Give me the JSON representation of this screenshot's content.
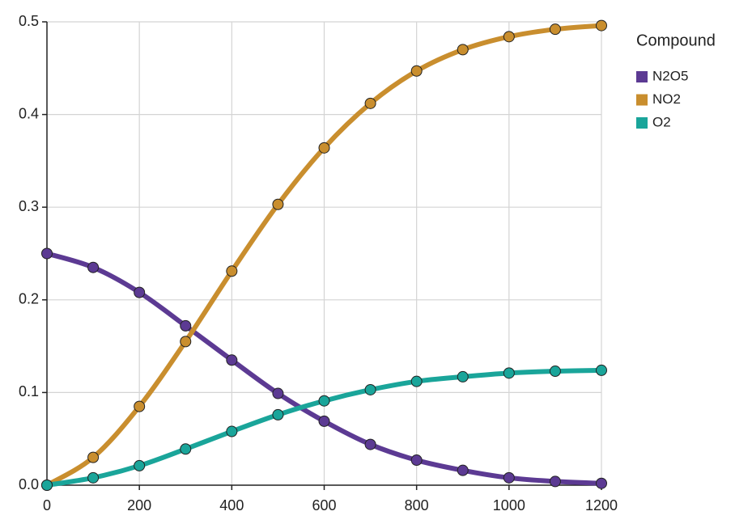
{
  "chart_data": {
    "type": "line",
    "x": [
      0,
      100,
      200,
      300,
      400,
      500,
      600,
      700,
      800,
      900,
      1000,
      1100,
      1200
    ],
    "series": [
      {
        "name": "N2O5",
        "color": "#5c3a93",
        "values": [
          0.25,
          0.235,
          0.208,
          0.172,
          0.135,
          0.099,
          0.069,
          0.044,
          0.027,
          0.016,
          0.008,
          0.004,
          0.002
        ]
      },
      {
        "name": "NO2",
        "color": "#c98e2e",
        "values": [
          0,
          0.03,
          0.085,
          0.155,
          0.231,
          0.303,
          0.364,
          0.412,
          0.447,
          0.47,
          0.484,
          0.492,
          0.496
        ]
      },
      {
        "name": "O2",
        "color": "#1aa59a",
        "values": [
          0,
          0.008,
          0.021,
          0.039,
          0.058,
          0.076,
          0.091,
          0.103,
          0.112,
          0.117,
          0.121,
          0.123,
          0.124
        ]
      }
    ],
    "legend_title": "Compound",
    "legend_position": "right",
    "xlim": [
      0,
      1200
    ],
    "xticks": [
      0,
      200,
      400,
      600,
      800,
      1000,
      1200
    ],
    "ylim": [
      0,
      0.5
    ],
    "yticks": [
      {
        "value": 0,
        "label": "0.0"
      },
      0.1,
      0.2,
      0.3,
      0.4,
      0.5
    ],
    "grid": true
  }
}
